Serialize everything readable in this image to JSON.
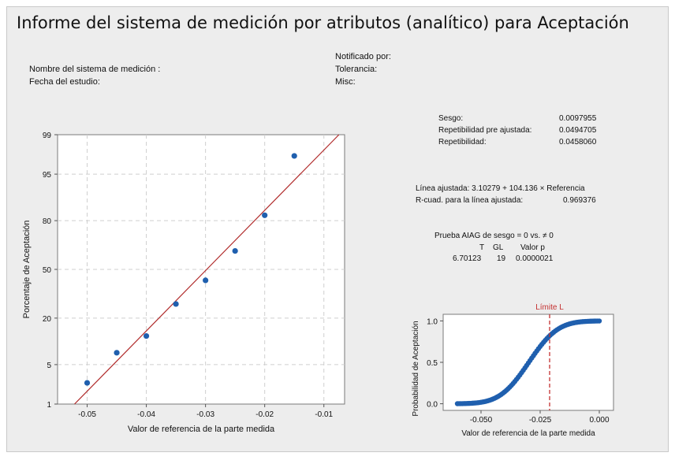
{
  "report": {
    "title": "Informe del sistema de medición por atributos (analítico) para Aceptación",
    "meta": {
      "system_name": "Nombre del sistema de medición :",
      "study_date": "Fecha del estudio:",
      "reported_by": "Notificado por:",
      "tolerance": "Tolerancia:",
      "misc": "Misc:"
    }
  },
  "stats": {
    "bias_label": "Sesgo:",
    "bias_value": "0.0097955",
    "rep_adj_label": "Repetibilidad pre ajustada:",
    "rep_adj_value": "0.0494705",
    "rep_label": "Repetibilidad:",
    "rep_value": "0.0458060",
    "fit_line": "Línea ajustada: 3.10279 + 104.136 × Referencia",
    "rsq_label": "R-cuad. para la línea ajustada:",
    "rsq_value": "0.969376",
    "aiag_title": "Prueba AIAG de sesgo = 0 vs. ≠ 0",
    "aiag_headers": [
      "T",
      "GL",
      "Valor p"
    ],
    "aiag_values": [
      "6.70123",
      "19",
      "0.0000021"
    ]
  },
  "chart_data": [
    {
      "type": "scatter",
      "xlabel": "Valor de referencia de la parte medida",
      "ylabel": "Porcentaje de Aceptación",
      "y_scale": "normal probability",
      "xlim": [
        -0.055,
        -0.0065
      ],
      "ylim_percent": [
        1,
        99
      ],
      "x_ticks": [
        -0.05,
        -0.04,
        -0.03,
        -0.02,
        -0.01
      ],
      "x_tick_labels": [
        "-0.05",
        "-0.04",
        "-0.03",
        "-0.02",
        "-0.01"
      ],
      "y_ticks": [
        1,
        5,
        20,
        50,
        80,
        95,
        99
      ],
      "y_tick_labels": [
        "1",
        "5",
        "20",
        "50",
        "80",
        "95",
        "99"
      ],
      "grid": true,
      "points": [
        {
          "x": -0.05,
          "y": 2.5
        },
        {
          "x": -0.045,
          "y": 7.5
        },
        {
          "x": -0.04,
          "y": 12.5
        },
        {
          "x": -0.035,
          "y": 27.5
        },
        {
          "x": -0.03,
          "y": 42.5
        },
        {
          "x": -0.025,
          "y": 62.5
        },
        {
          "x": -0.02,
          "y": 82.5
        },
        {
          "x": -0.015,
          "y": 97.5
        }
      ],
      "fit_line": {
        "intercept": 3.10279,
        "slope": 104.136
      },
      "colors": {
        "points": "#1f5fae",
        "line": "#b02a2a",
        "grid": "#cfcfcf"
      }
    },
    {
      "type": "line",
      "xlabel": "Valor de referencia de la parte medida",
      "ylabel": "Probabilidad de Aceptación",
      "xlim": [
        -0.066,
        0.006
      ],
      "ylim": [
        -0.08,
        1.08
      ],
      "x_ticks": [
        -0.05,
        -0.025,
        0.0
      ],
      "x_tick_labels": [
        "-0.050",
        "-0.025",
        "0.000"
      ],
      "y_ticks": [
        0.0,
        0.5,
        1.0
      ],
      "y_tick_labels": [
        "0.0",
        "0.5",
        "1.0"
      ],
      "curve": {
        "intercept": 3.10279,
        "slope": 104.136,
        "x_from": -0.06,
        "x_to": 0.0,
        "n_points": 85
      },
      "limit_line": {
        "label": "Límite L",
        "x": -0.021
      },
      "colors": {
        "points": "#1f5fae",
        "limit": "#c43030"
      }
    }
  ]
}
